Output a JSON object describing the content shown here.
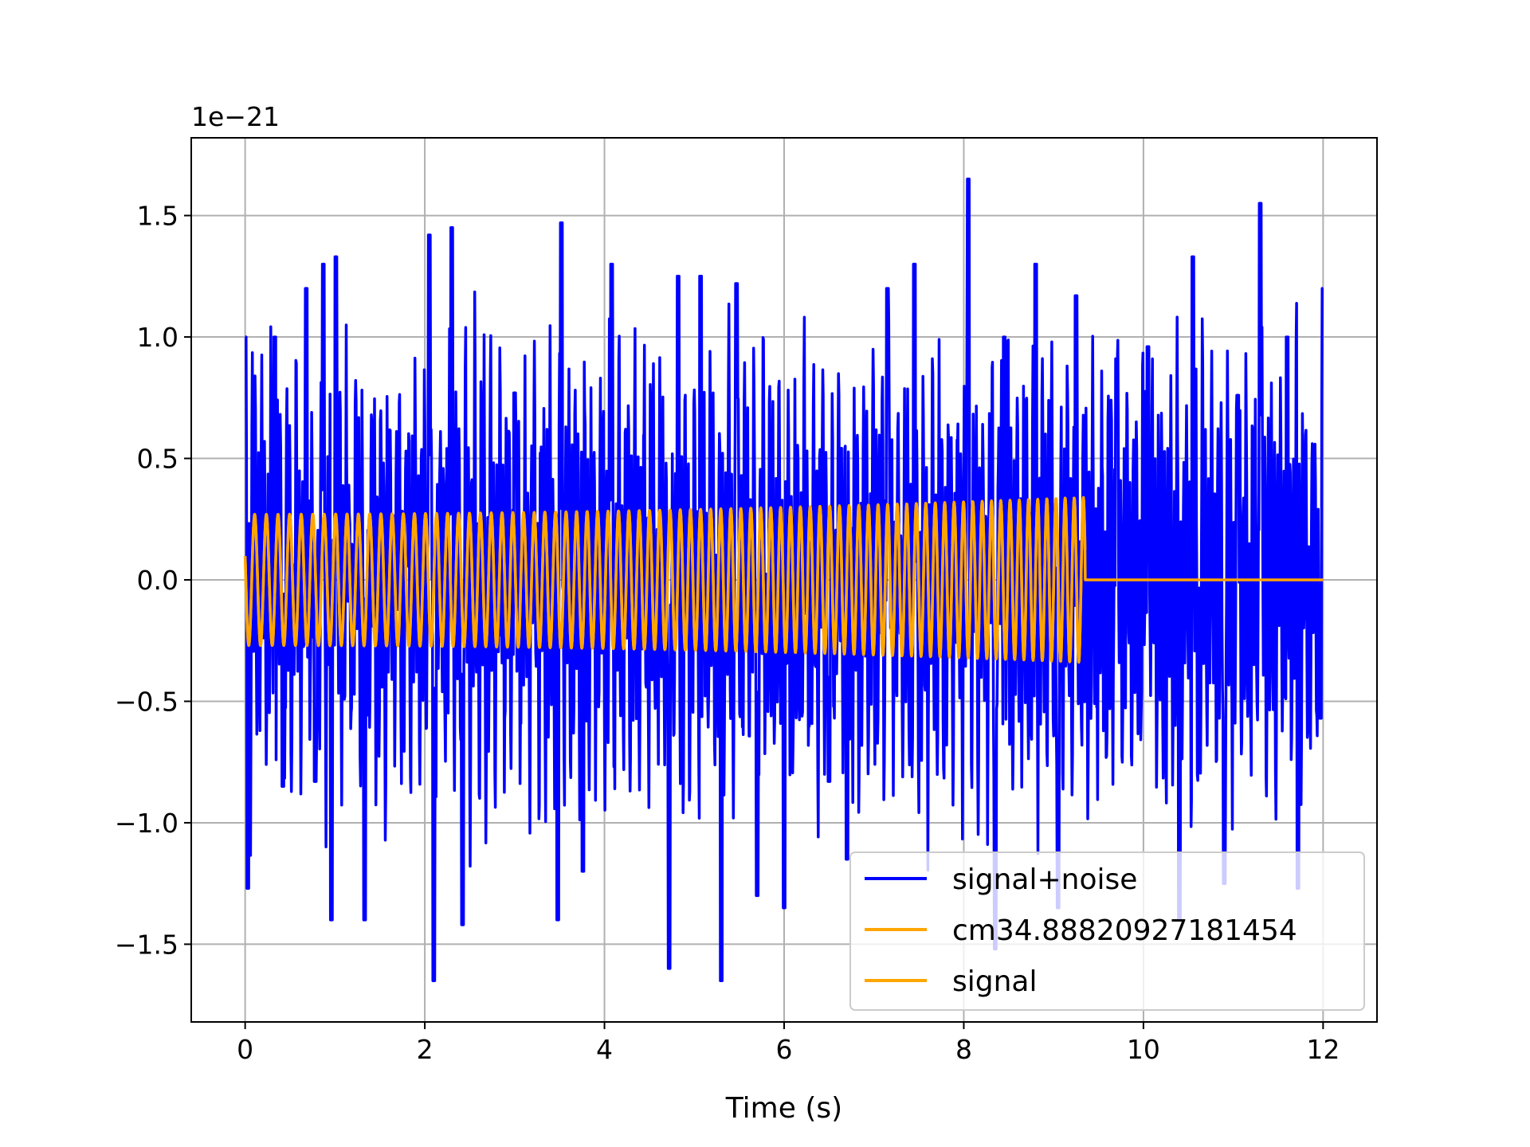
{
  "chart_data": {
    "type": "line",
    "title": "",
    "xlabel": "Time (s)",
    "ylabel": "",
    "y_offset_label": "1e−21",
    "xlim": [
      -0.6,
      12.6
    ],
    "ylim": [
      -1.82,
      1.82
    ],
    "x_ticks": [
      0,
      2,
      4,
      6,
      8,
      10,
      12
    ],
    "x_tick_labels": [
      "0",
      "2",
      "4",
      "6",
      "8",
      "10",
      "12"
    ],
    "y_ticks": [
      -1.5,
      -1.0,
      -0.5,
      0.0,
      0.5,
      1.0,
      1.5
    ],
    "y_tick_labels": [
      "−1.5",
      "−1.0",
      "−0.5",
      "0.0",
      "0.5",
      "1.0",
      "1.5"
    ],
    "grid": true,
    "legend_position": "lower-right",
    "series": [
      {
        "name": "signal+noise",
        "color": "#0000ff",
        "x_range": [
          0,
          12
        ],
        "amplitude_envelope": 1.65,
        "peaks": [
          [
            0.0,
            1.0
          ],
          [
            0.03,
            -1.27
          ],
          [
            0.33,
            1.0
          ],
          [
            0.42,
            -0.85
          ],
          [
            0.68,
            1.2
          ],
          [
            0.78,
            -0.83
          ],
          [
            0.87,
            1.3
          ],
          [
            0.96,
            -1.4
          ],
          [
            1.01,
            1.33
          ],
          [
            1.33,
            -1.4
          ],
          [
            1.8,
            0.53
          ],
          [
            2.05,
            1.42
          ],
          [
            2.1,
            -1.65
          ],
          [
            2.3,
            1.45
          ],
          [
            2.42,
            -1.42
          ],
          [
            3.0,
            0.77
          ],
          [
            3.48,
            -1.4
          ],
          [
            3.52,
            1.47
          ],
          [
            3.76,
            -1.2
          ],
          [
            4.08,
            1.3
          ],
          [
            4.72,
            -1.6
          ],
          [
            4.82,
            1.25
          ],
          [
            5.07,
            1.25
          ],
          [
            5.3,
            -1.65
          ],
          [
            5.47,
            1.22
          ],
          [
            5.7,
            -1.3
          ],
          [
            6.0,
            -1.35
          ],
          [
            6.5,
            -0.83
          ],
          [
            6.7,
            -1.15
          ],
          [
            7.15,
            1.2
          ],
          [
            7.45,
            1.3
          ],
          [
            8.05,
            1.65
          ],
          [
            8.35,
            -1.52
          ],
          [
            8.45,
            1.0
          ],
          [
            8.8,
            1.3
          ],
          [
            9.05,
            -1.35
          ],
          [
            9.25,
            1.17
          ],
          [
            9.7,
            0.91
          ],
          [
            10.05,
            0.96
          ],
          [
            10.4,
            -1.4
          ],
          [
            10.55,
            1.33
          ],
          [
            10.9,
            -1.25
          ],
          [
            11.05,
            0.76
          ],
          [
            11.3,
            1.55
          ],
          [
            11.6,
            1.0
          ],
          [
            11.72,
            -1.27
          ],
          [
            11.97,
            -0.57
          ],
          [
            12.0,
            1.2
          ]
        ]
      },
      {
        "name": "cm34.88820927181454",
        "color": "#ffa500",
        "x_range": [
          0,
          9.35
        ],
        "amplitude_start": 0.27,
        "amplitude_end": 0.34,
        "cycles": 82,
        "after_end_value": 0.0
      },
      {
        "name": "signal",
        "color": "#ffa500",
        "x_range": [
          0,
          12
        ],
        "amplitude_start": 0.27,
        "amplitude_end": 0.34,
        "cycles": 82,
        "merger_time": 9.35,
        "after_end_value": 0.0
      }
    ]
  }
}
